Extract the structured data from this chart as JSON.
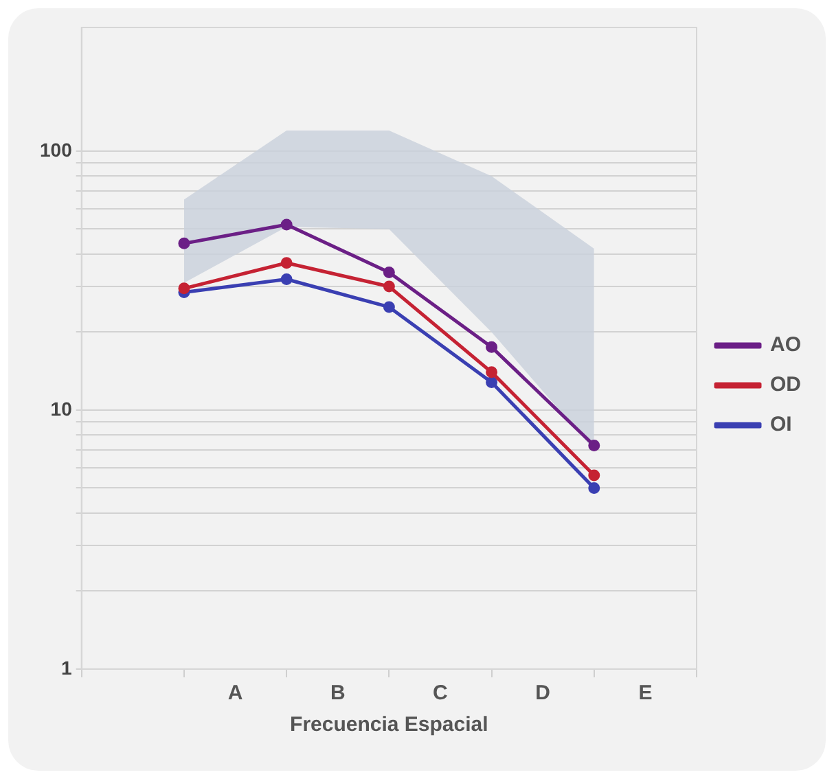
{
  "chart_data": {
    "type": "line",
    "xlabel": "Frecuencia Espacial",
    "log": "y",
    "grid": "y",
    "legend": "right",
    "marker": "circle",
    "line_style": "solid",
    "categories": [
      null,
      null,
      null,
      "A",
      null,
      "B",
      null,
      "C",
      null,
      "D",
      null,
      "E",
      null
    ],
    "ylim": [
      1,
      300
    ],
    "yticks": [
      1,
      {
        "value": 2,
        "label": null
      },
      {
        "value": 3,
        "label": null
      },
      {
        "value": 4,
        "label": null
      },
      {
        "value": 5,
        "label": null
      },
      {
        "value": 6,
        "label": null
      },
      {
        "value": 7,
        "label": null
      },
      {
        "value": 8,
        "label": null
      },
      {
        "value": 9,
        "label": null
      },
      10,
      {
        "value": 20,
        "label": null
      },
      {
        "value": 30,
        "label": null
      },
      {
        "value": 40,
        "label": null
      },
      {
        "value": 50,
        "label": null
      },
      {
        "value": 60,
        "label": null
      },
      {
        "value": 70,
        "label": null
      },
      {
        "value": 80,
        "label": null
      },
      {
        "value": 90,
        "label": null
      },
      100
    ],
    "series": [
      {
        "type": "area",
        "color": "#c9d0dc",
        "values": [
          null,
          null,
          null,
          null,
          null,
          null,
          null,
          null,
          null,
          null,
          null,
          null,
          null
        ],
        "lower": [
          null,
          null,
          31,
          null,
          51,
          null,
          50,
          null,
          20,
          null,
          7,
          null,
          null
        ],
        "upper": [
          null,
          null,
          65,
          null,
          120,
          null,
          120,
          null,
          80,
          null,
          42,
          null,
          null
        ]
      },
      {
        "name": "AO",
        "color": "#6b1f86",
        "values": [
          null,
          null,
          44,
          null,
          52,
          null,
          34,
          null,
          17.5,
          null,
          7.3,
          null,
          null
        ]
      },
      {
        "name": "OD",
        "color": "#c52233",
        "values": [
          null,
          null,
          29.5,
          null,
          37,
          null,
          30,
          null,
          14,
          null,
          5.6,
          null,
          null
        ]
      },
      {
        "name": "OI",
        "color": "#3a3fb2",
        "values": [
          null,
          null,
          28.5,
          null,
          32,
          null,
          25,
          null,
          12.8,
          null,
          5,
          null,
          null
        ]
      }
    ]
  }
}
